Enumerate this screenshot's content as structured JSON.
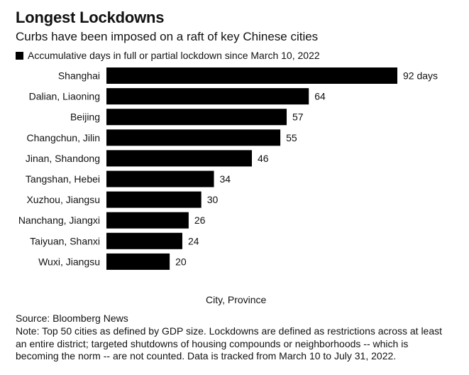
{
  "header": {
    "title": "Longest Lockdowns",
    "subtitle": "Curbs have been imposed on a raft of key Chinese cities"
  },
  "chart_data": {
    "type": "bar",
    "orientation": "horizontal",
    "series": [
      {
        "name": "Accumulative days in full or partial lockdown since March 10, 2022",
        "values": [
          92,
          64,
          57,
          55,
          46,
          34,
          30,
          26,
          24,
          20
        ],
        "color": "#000000"
      }
    ],
    "categories": [
      "Shanghai",
      "Dalian, Liaoning",
      "Beijing",
      "Changchun, Jilin",
      "Jinan, Shandong",
      "Tangshan, Hebei",
      "Xuzhou, Jiangsu",
      "Nanchang, Jiangxi",
      "Taiyuan, Shanxi",
      "Wuxi, Jiangsu"
    ],
    "value_labels": [
      "92 days",
      "64",
      "57",
      "55",
      "46",
      "34",
      "30",
      "26",
      "24",
      "20"
    ],
    "xlabel": "City, Province",
    "legend": "top-left",
    "grid": false
  },
  "footer": {
    "source": "Source: Bloomberg News",
    "note": "Note: Top 50 cities as defined by GDP size. Lockdowns are defined as restrictions across at least an entire district; targeted shutdowns of housing compounds or neighborhoods -- which is becoming the norm -- are not counted. Data is tracked from March 10 to July 31, 2022."
  }
}
